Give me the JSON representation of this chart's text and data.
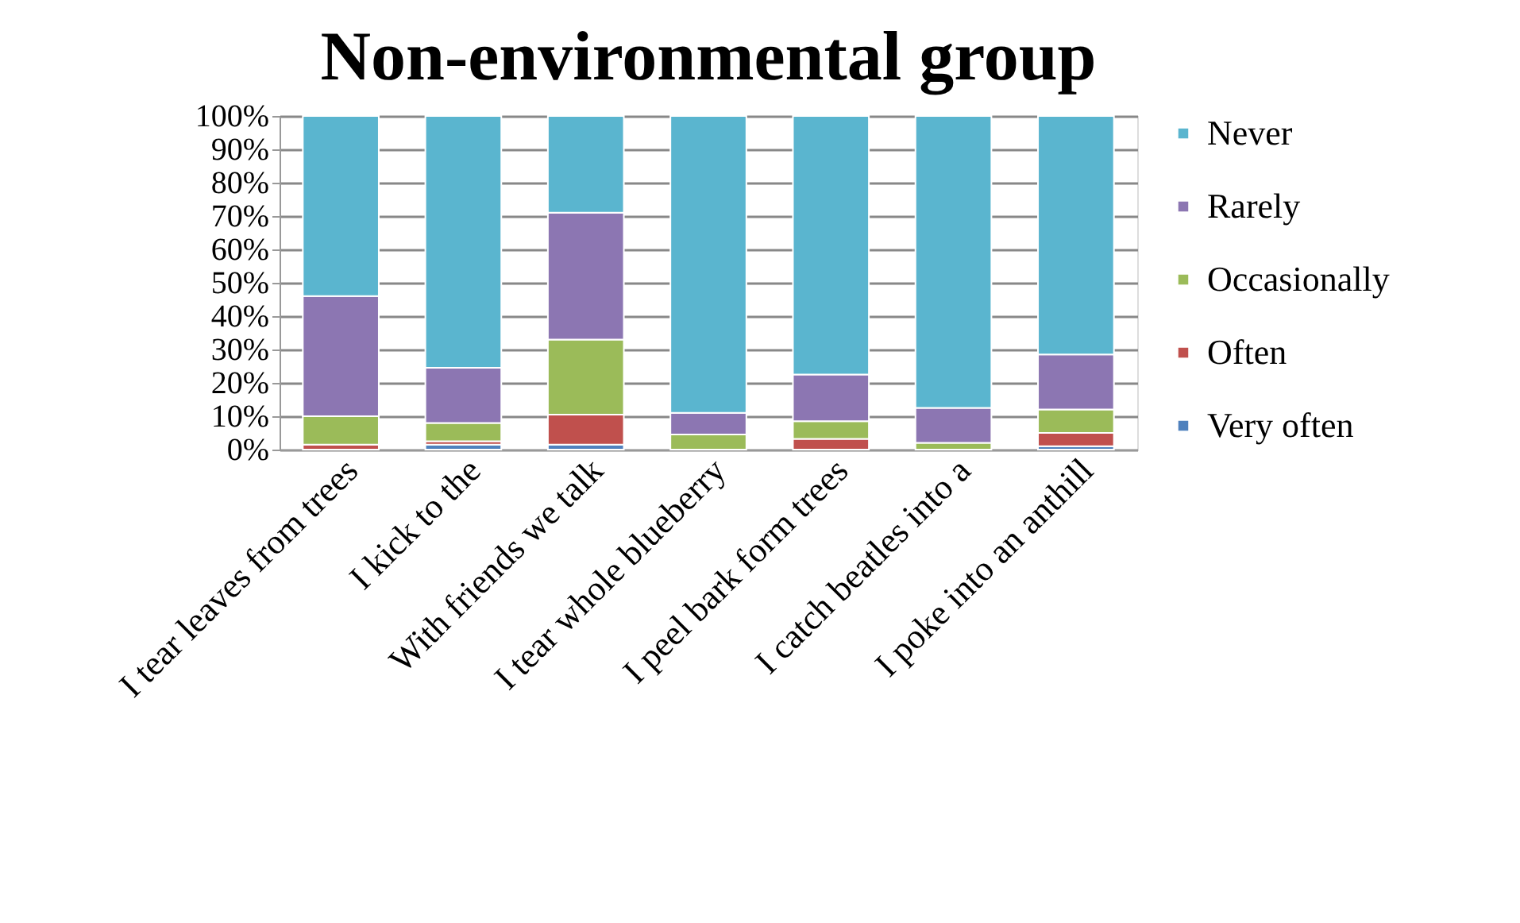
{
  "chart_data": {
    "type": "bar",
    "title": "Non-environmental group",
    "stacked": true,
    "categories": [
      "I tear leaves from trees",
      "I kick to the",
      "With friends we talk",
      "I tear whole blueberry",
      "I peel bark form trees",
      "I catch beatles into a",
      "I poke into an anthill"
    ],
    "series": [
      {
        "name": "Very often",
        "color": "#4f81bd",
        "values": [
          0,
          1.5,
          1.5,
          0,
          0,
          null,
          1
        ]
      },
      {
        "name": "Often",
        "color": "#c0504d",
        "values": [
          1.5,
          1,
          9,
          0,
          3.2,
          0,
          4
        ]
      },
      {
        "name": "Occasionally",
        "color": "#9bbb59",
        "values": [
          8.5,
          5.5,
          22.5,
          4.5,
          5.3,
          2,
          7
        ]
      },
      {
        "name": "Rarely",
        "color": "#8c76b2",
        "values": [
          36,
          16.5,
          38,
          6.5,
          14,
          10.5,
          16.5
        ]
      },
      {
        "name": "Never",
        "color": "#5ab5cf",
        "values": [
          54,
          75.5,
          29,
          89,
          77.5,
          87.5,
          71.5
        ]
      }
    ],
    "ylim": [
      0,
      100
    ],
    "yticks": [
      {
        "value": 0,
        "label": "0%"
      },
      {
        "value": 10,
        "label": "10%"
      },
      {
        "value": 20,
        "label": "20%"
      },
      {
        "value": 30,
        "label": "30%"
      },
      {
        "value": 40,
        "label": "40%"
      },
      {
        "value": 50,
        "label": "50%"
      },
      {
        "value": 60,
        "label": "60%"
      },
      {
        "value": 70,
        "label": "70%"
      },
      {
        "value": 80,
        "label": "80%"
      },
      {
        "value": 90,
        "label": "90%"
      },
      {
        "value": 100,
        "label": "100%"
      }
    ],
    "grid": "y",
    "legend": "right"
  }
}
